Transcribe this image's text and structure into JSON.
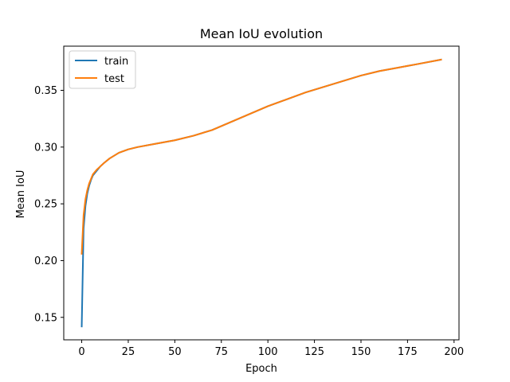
{
  "chart_data": {
    "type": "line",
    "title": "Mean IoU evolution",
    "xlabel": "Epoch",
    "ylabel": "Mean IoU",
    "xlim": [
      -9.65,
      202.65
    ],
    "ylim": [
      0.1302,
      0.3889
    ],
    "xticks": [
      0,
      25,
      50,
      75,
      100,
      125,
      150,
      175,
      200
    ],
    "xtick_labels": [
      "0",
      "25",
      "50",
      "75",
      "100",
      "125",
      "150",
      "175",
      "200"
    ],
    "yticks": [
      0.15,
      0.2,
      0.25,
      0.3,
      0.35
    ],
    "ytick_labels": [
      "0.15",
      "0.20",
      "0.25",
      "0.30",
      "0.35"
    ],
    "grid": false,
    "legend_position": "top-left",
    "series": [
      {
        "name": "train",
        "color": "#1f77b4",
        "x": [
          0,
          1,
          2,
          3,
          4,
          5,
          6,
          8,
          10,
          12,
          15,
          20,
          25,
          30,
          40,
          50,
          60,
          70,
          80,
          90,
          100,
          110,
          120,
          130,
          140,
          150,
          160,
          170,
          180,
          193
        ],
        "y": [
          0.142,
          0.228,
          0.248,
          0.259,
          0.266,
          0.271,
          0.275,
          0.279,
          0.283,
          0.286,
          0.29,
          0.295,
          0.298,
          0.3,
          0.303,
          0.306,
          0.31,
          0.315,
          0.322,
          0.329,
          0.336,
          0.342,
          0.348,
          0.353,
          0.358,
          0.363,
          0.367,
          0.37,
          0.373,
          0.377
        ]
      },
      {
        "name": "test",
        "color": "#ff7f0e",
        "x": [
          0,
          1,
          2,
          3,
          4,
          5,
          6,
          8,
          10,
          12,
          15,
          20,
          25,
          30,
          40,
          50,
          60,
          70,
          80,
          90,
          100,
          110,
          120,
          130,
          140,
          150,
          160,
          170,
          180,
          193
        ],
        "y": [
          0.206,
          0.24,
          0.254,
          0.262,
          0.268,
          0.272,
          0.276,
          0.28,
          0.283,
          0.286,
          0.29,
          0.295,
          0.298,
          0.3,
          0.303,
          0.306,
          0.31,
          0.315,
          0.322,
          0.329,
          0.336,
          0.342,
          0.348,
          0.353,
          0.358,
          0.363,
          0.367,
          0.37,
          0.373,
          0.377
        ]
      }
    ]
  }
}
